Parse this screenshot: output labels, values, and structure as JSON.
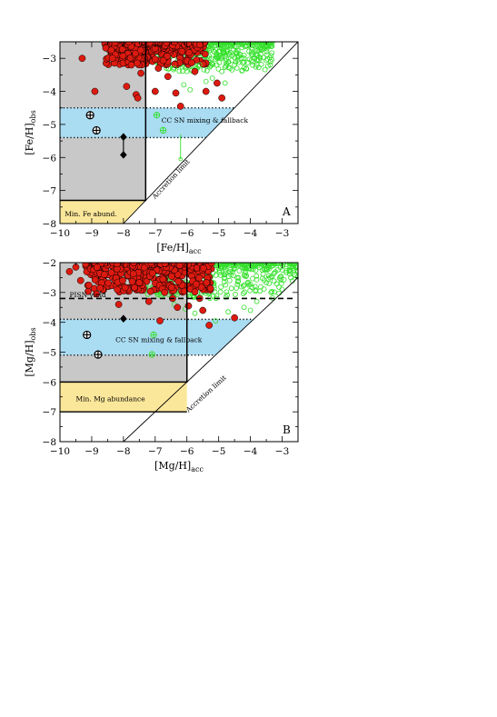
{
  "chart_data": [
    {
      "type": "scatter",
      "panel": "A",
      "xlabel": "[Fe/H]",
      "xlabel_sub": "acc",
      "ylabel": "[Fe/H]",
      "ylabel_sub": "obs",
      "xlim": [
        -10,
        -2.5
      ],
      "ylim": [
        -8,
        -2.5
      ],
      "xticks": [
        -10,
        -9,
        -8,
        -7,
        -6,
        -5,
        -4,
        -3
      ],
      "yticks": [
        -8,
        -7,
        -6,
        -5,
        -4,
        -3
      ],
      "xtick_labels": [
        "−10",
        "−9",
        "−8",
        "−7",
        "−6",
        "−5",
        "−4",
        "−3"
      ],
      "ytick_labels": [
        "−8",
        "−7",
        "−6",
        "−5",
        "−4",
        "−3"
      ],
      "panel_label": "A",
      "colors": {
        "grey": "#c8c8c8",
        "blue": "#aadcf2",
        "yellow": "#fbe79a",
        "red": "#dd1a10",
        "green": "#33e02a"
      },
      "regions": {
        "grey_box": {
          "x": [
            -10,
            -7.3
          ],
          "y": [
            -7.3,
            -2.5
          ]
        },
        "yellow_region": {
          "x": [
            -10,
            -7.3
          ],
          "y": [
            -8,
            -7.3
          ],
          "diag_x_start": -8
        },
        "blue_band": {
          "y": [
            -5.4,
            -4.5
          ],
          "x_start": -10,
          "x_end_top": -4.5,
          "x_end_bottom": -5.4
        },
        "accretion_limit_line": {
          "x": [
            -8,
            -2.5
          ],
          "y": [
            -8,
            -2.5
          ]
        }
      },
      "labels": {
        "mixing": "CC SN mixing & fallback",
        "mixing_pos": [
          -6.8,
          -4.86
        ],
        "min_abund": "Min. Fe abund.",
        "min_abund_pos": [
          -9.85,
          -7.7
        ],
        "accretion": "Accretion limit",
        "accretion_pos": [
          -6.45,
          -6.7
        ],
        "accretion_angle": -47
      },
      "open_circle_plus": [
        [
          -9.05,
          -4.72
        ],
        [
          -8.85,
          -5.18
        ]
      ],
      "diamonds": [
        [
          -8.0,
          -5.38
        ],
        [
          -8.0,
          -5.92
        ]
      ],
      "green_plus_circles": [
        [
          -6.95,
          -4.72
        ],
        [
          -6.75,
          -5.18
        ]
      ],
      "green_errorbar": {
        "x": -6.2,
        "y": [
          -5.3,
          -6.05
        ]
      },
      "red_outliers": [
        [
          -9.3,
          -3.0
        ],
        [
          -8.35,
          -3.0
        ],
        [
          -7.75,
          -3.2
        ],
        [
          -7.9,
          -3.85
        ],
        [
          -8.9,
          -4.0
        ],
        [
          -7.45,
          -3.45
        ],
        [
          -7.6,
          -4.1
        ],
        [
          -7.55,
          -4.2
        ],
        [
          -7.0,
          -4.0
        ],
        [
          -6.35,
          -4.05
        ],
        [
          -6.2,
          -4.45
        ],
        [
          -5.75,
          -3.4
        ],
        [
          -5.4,
          -4.0
        ],
        [
          -5.05,
          -3.75
        ],
        [
          -4.9,
          -4.2
        ],
        [
          -6.6,
          -3.55
        ],
        [
          -6.9,
          -3.3
        ]
      ],
      "green_outliers": [
        [
          -6.1,
          -3.8
        ],
        [
          -5.9,
          -3.95
        ],
        [
          -5.4,
          -3.7
        ],
        [
          -5.2,
          -3.6
        ],
        [
          -4.9,
          -3.4
        ],
        [
          -4.5,
          -3.2
        ],
        [
          -6.4,
          -3.3
        ],
        [
          -5.6,
          -3.2
        ],
        [
          -4.8,
          -3.75
        ]
      ],
      "seed": 12345
    },
    {
      "type": "scatter",
      "panel": "B",
      "xlabel": "[Mg/H]",
      "xlabel_sub": "acc",
      "ylabel": "[Mg/H]",
      "ylabel_sub": "obs",
      "xlim": [
        -10,
        -2.5
      ],
      "ylim": [
        -8,
        -2
      ],
      "xticks": [
        -10,
        -9,
        -8,
        -7,
        -6,
        -5,
        -4,
        -3
      ],
      "yticks": [
        -8,
        -7,
        -6,
        -5,
        -4,
        -3,
        -2
      ],
      "xtick_labels": [
        "−10",
        "−9",
        "−8",
        "−7",
        "−6",
        "−5",
        "−4",
        "−3"
      ],
      "ytick_labels": [
        "−8",
        "−7",
        "−6",
        "−5",
        "−4",
        "−3",
        "−2"
      ],
      "panel_label": "B",
      "colors": {
        "grey": "#c8c8c8",
        "blue": "#aadcf2",
        "yellow": "#fbe79a",
        "red": "#dd1a10",
        "green": "#33e02a"
      },
      "regions": {
        "grey_box": {
          "x": [
            -10,
            -6.0
          ],
          "y": [
            -6.0,
            -2
          ]
        },
        "yellow_region": {
          "x": [
            -10,
            -6.0
          ],
          "y": [
            -7.0,
            -6.0
          ]
        },
        "blue_band": {
          "y": [
            -5.1,
            -3.9
          ],
          "x_start": -10,
          "x_end_top": -3.9,
          "x_end_bottom": -5.1
        },
        "pisn_line": {
          "y": -3.2,
          "x": [
            -10,
            -2.65
          ]
        },
        "accretion_limit_line": {
          "x": [
            -8,
            -2
          ],
          "y": [
            -8,
            -2
          ]
        }
      },
      "labels": {
        "pisn": "PISN yield",
        "pisn_pos": [
          -9.7,
          -3.06
        ],
        "mixing": "CC SN mixing & fallback",
        "mixing_pos": [
          -8.25,
          -4.58
        ],
        "min_abund": "Min. Mg abundance",
        "min_abund_pos": [
          -9.5,
          -6.55
        ],
        "accretion": "Accretion limit",
        "accretion_pos": [
          -5.35,
          -6.45
        ],
        "accretion_angle": -42
      },
      "open_circle_plus": [
        [
          -9.15,
          -4.42
        ],
        [
          -8.8,
          -5.08
        ]
      ],
      "diamonds": [
        [
          -8.0,
          -3.88
        ]
      ],
      "green_plus_circles": [
        [
          -7.05,
          -4.42
        ],
        [
          -7.1,
          -5.08
        ]
      ],
      "red_outliers": [
        [
          -9.5,
          -2.15
        ],
        [
          -9.7,
          -2.3
        ],
        [
          -9.35,
          -2.6
        ],
        [
          -8.6,
          -2.4
        ],
        [
          -8.85,
          -3.05
        ],
        [
          -8.15,
          -3.4
        ],
        [
          -6.85,
          -3.95
        ],
        [
          -6.3,
          -3.5
        ],
        [
          -5.95,
          -3.45
        ],
        [
          -5.5,
          -3.6
        ],
        [
          -4.5,
          -3.85
        ],
        [
          -5.3,
          -4.1
        ],
        [
          -6.45,
          -3.2
        ],
        [
          -7.2,
          -3.3
        ],
        [
          -6.7,
          -3.0
        ],
        [
          -5.6,
          -3.2
        ]
      ],
      "green_outliers": [
        [
          -6.05,
          -3.55
        ],
        [
          -5.75,
          -3.7
        ],
        [
          -5.1,
          -3.95
        ],
        [
          -4.7,
          -3.65
        ],
        [
          -4.2,
          -3.5
        ],
        [
          -3.8,
          -3.3
        ],
        [
          -3.35,
          -3.0
        ],
        [
          -3.7,
          -2.95
        ],
        [
          -4.0,
          -3.6
        ],
        [
          -6.4,
          -3.4
        ]
      ],
      "seed": 6789
    }
  ]
}
